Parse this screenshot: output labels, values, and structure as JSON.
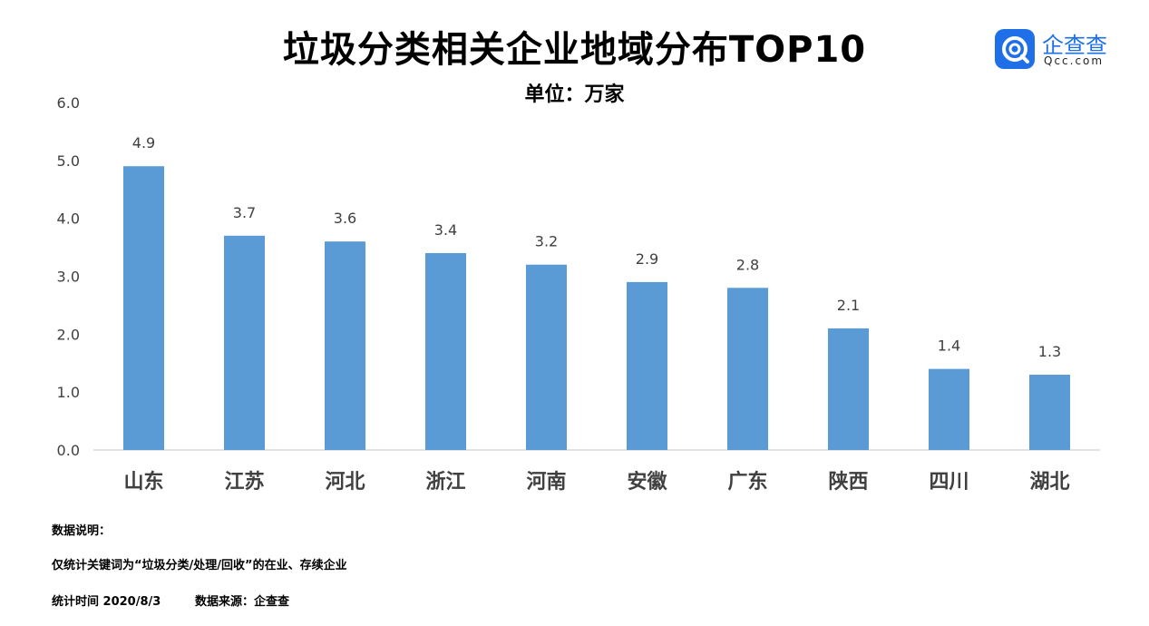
{
  "title": "垃圾分类相关企业地域分布TOP10",
  "subtitle": "单位：万家",
  "logo": {
    "name_cn": "企查查",
    "domain": "Qcc.com",
    "color": "#1e6fe8"
  },
  "notes": {
    "heading": "数据说明：",
    "line1": "仅统计关键词为“垃圾分类/处理/回收”的在业、存续企业",
    "line2": "统计时间 2020/8/3",
    "source": "数据来源：企查查"
  },
  "chart_data": {
    "type": "bar",
    "categories": [
      "山东",
      "江苏",
      "河北",
      "浙江",
      "河南",
      "安徽",
      "广东",
      "陕西",
      "四川",
      "湖北"
    ],
    "values": [
      4.9,
      3.7,
      3.6,
      3.4,
      3.2,
      2.9,
      2.8,
      2.1,
      1.4,
      1.3
    ],
    "value_labels": [
      "4.9",
      "3.7",
      "3.6",
      "3.4",
      "3.2",
      "2.9",
      "2.8",
      "2.1",
      "1.4",
      "1.3"
    ],
    "yticks": [
      "0.0",
      "1.0",
      "2.0",
      "3.0",
      "4.0",
      "5.0",
      "6.0"
    ],
    "ylim": [
      0,
      6
    ],
    "grid": false,
    "bar_color": "#5b9bd5"
  }
}
